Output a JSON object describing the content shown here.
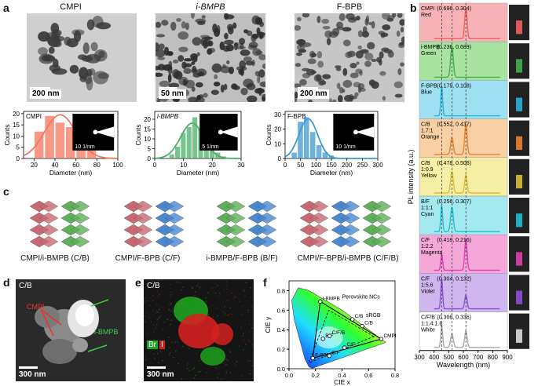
{
  "panels": {
    "a": "a",
    "b": "b",
    "c": "c",
    "d": "d",
    "e": "e",
    "f": "f"
  },
  "panel_a": {
    "tem": [
      {
        "title": "CMPI",
        "scale": "200 nm"
      },
      {
        "title": "i-BMPB",
        "scale": "50 nm"
      },
      {
        "title": "F-BPB",
        "scale": "200 nm"
      }
    ],
    "colors": {
      "cmpi": "#f4765f",
      "ibmpb": "#4caf65",
      "fbpb": "#3d9ad1"
    },
    "hist_xlabel": "Diameter (nm)",
    "hist_ylabel": "Counts",
    "diff_scales": [
      "10 1/nm",
      "5 1/nm",
      "10 1/nm"
    ]
  },
  "panel_c": {
    "labels": [
      "CMPI/i-BMPB (C/B)",
      "CMPI/F-BPB (C/F)",
      "i-BMPB/F-BPB (B/F)",
      "CMPI/F-BPB/i-BMPB (C/F/B)"
    ]
  },
  "panel_d": {
    "corner": "C/B",
    "label_cmpi": "CMPI",
    "label_ibmpb": "i-BMPB",
    "scale": "300 nm"
  },
  "panel_e": {
    "corner": "C/B",
    "legend_br": "Br",
    "legend_i": "I",
    "scale": "300 nm"
  },
  "chart_data": [
    {
      "type": "bar",
      "title": "CMPI",
      "xlabel": "Diameter (nm)",
      "ylabel": "Counts",
      "xlim": [
        10,
        100
      ],
      "ylim": [
        0,
        21
      ],
      "xticks": [
        20,
        40,
        60,
        80,
        100
      ],
      "yticks": [
        0,
        5,
        10,
        15,
        20
      ],
      "bins": [
        25,
        35,
        45,
        55,
        65,
        75
      ],
      "values": [
        12,
        19,
        16,
        14,
        6,
        4
      ],
      "binwidth": 9,
      "fit": {
        "mu": 45,
        "sigma": 15,
        "amp": 19.5
      }
    },
    {
      "type": "bar",
      "title": "i-BMPB",
      "xlabel": "Diameter (nm)",
      "ylabel": "Counts",
      "xlim": [
        0,
        30
      ],
      "ylim": [
        0,
        24
      ],
      "xticks": [
        0,
        10,
        20,
        30
      ],
      "yticks": [
        0,
        5,
        10,
        15,
        20
      ],
      "bins": [
        6,
        8,
        10,
        12,
        14,
        16,
        18,
        20,
        22,
        24
      ],
      "values": [
        2,
        6,
        13,
        16,
        21,
        15,
        8,
        4,
        3,
        1
      ],
      "binwidth": 1.8,
      "fit": {
        "mu": 13,
        "sigma": 4,
        "amp": 18
      }
    },
    {
      "type": "bar",
      "title": "F-BPB",
      "xlabel": "Diameter (nm)",
      "ylabel": "Counts",
      "xlim": [
        0,
        300
      ],
      "ylim": [
        0,
        32
      ],
      "xticks": [
        0,
        50,
        100,
        150,
        200,
        250,
        300
      ],
      "yticks": [
        0,
        10,
        20,
        30
      ],
      "bins": [
        30,
        50,
        70,
        90,
        110,
        130,
        150
      ],
      "values": [
        4,
        25,
        28,
        18,
        9,
        4,
        2
      ],
      "binwidth": 18,
      "fit": {
        "mu": 75,
        "sigma": 30,
        "amp": 27
      }
    },
    {
      "type": "line",
      "title": "PL spectra",
      "xlabel": "Wavelength (nm)",
      "ylabel": "PL intensity (a.u.)",
      "xlim": [
        300,
        900
      ],
      "xticks": [
        300,
        400,
        500,
        600,
        700,
        800,
        900
      ],
      "rows": [
        {
          "name": "CMPI Red",
          "coords": "(0.696, 0.304)",
          "bg": "#f7b3b8",
          "line": "#f06060"
        },
        {
          "name": "i-BMPB Green",
          "coords": "(0.236, 0.689)",
          "bg": "#a8e3a0",
          "line": "#3eb24f"
        },
        {
          "name": "F-BPB Blue",
          "coords": "(0.179, 0.108)",
          "bg": "#9fe1f3",
          "line": "#27b3dd"
        },
        {
          "name": "C/B 1.7:1 Orange",
          "coords": "(0.552, 0.437)",
          "bg": "#f9cfa4",
          "line": "#f08030"
        },
        {
          "name": "C/B 1:0.9 Yellow",
          "coords": "(0.478, 0.506)",
          "bg": "#f8efa6",
          "line": "#d8c030"
        },
        {
          "name": "B/F 1:1:1 Cyan",
          "coords": "(0.256, 0.307)",
          "bg": "#a4e8f0",
          "line": "#20c0d8"
        },
        {
          "name": "C/F 1:2.2 Magenta",
          "coords": "(0.418, 0.216)",
          "bg": "#f5a8d8",
          "line": "#e040b0"
        },
        {
          "name": "C/F 1:5.6 Violet",
          "coords": "(0.304, 0.132)",
          "bg": "#cfb6ef",
          "line": "#9050d8"
        },
        {
          "name": "C/F/B 1:1.4:1.8 White",
          "coords": "(0.306, 0.336)",
          "bg": "#ffffff",
          "line": "#aaaaaa"
        }
      ],
      "dashed_lines_nm": [
        452,
        522,
        617
      ]
    },
    {
      "type": "scatter",
      "title": "CIE",
      "xlabel": "CIE x",
      "ylabel": "CIE y",
      "xlim": [
        0,
        0.8
      ],
      "ylim": [
        0,
        0.9
      ],
      "xticks": [
        0.0,
        0.2,
        0.4,
        0.6,
        0.8
      ],
      "yticks": [
        0.0,
        0.2,
        0.4,
        0.6,
        0.8
      ],
      "points": [
        {
          "label": "CMPI",
          "x": 0.696,
          "y": 0.304
        },
        {
          "label": "i-BMPB",
          "x": 0.236,
          "y": 0.689
        },
        {
          "label": "F-BPB",
          "x": 0.179,
          "y": 0.108
        },
        {
          "label": "C/B",
          "x": 0.552,
          "y": 0.437
        },
        {
          "label": "C/B",
          "x": 0.478,
          "y": 0.506
        },
        {
          "label": "B/F",
          "x": 0.256,
          "y": 0.307
        },
        {
          "label": "C/F",
          "x": 0.418,
          "y": 0.216
        },
        {
          "label": "C/F",
          "x": 0.304,
          "y": 0.132
        },
        {
          "label": "C/F/B",
          "x": 0.306,
          "y": 0.336
        }
      ],
      "annotations": [
        "Perovskite NCs",
        "sRGB"
      ]
    }
  ]
}
